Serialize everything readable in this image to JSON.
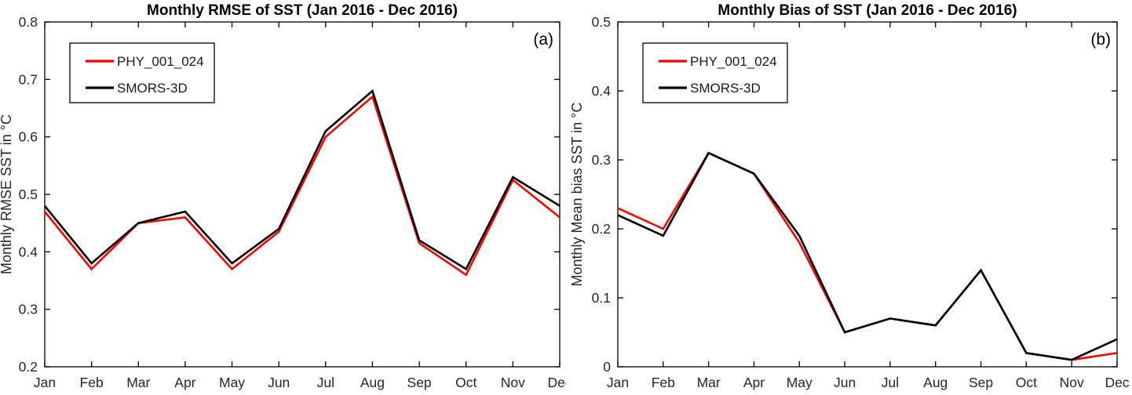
{
  "figure": {
    "background": "#ffffff",
    "text_color": "#262626",
    "title_color": "#000000"
  },
  "chart_data": [
    {
      "type": "line",
      "panel_label": "(a)",
      "title": "Monthly RMSE of SST (Jan 2016 - Dec 2016)",
      "ylabel": "Monthly RMSE SST in °C",
      "xlabel": "",
      "categories": [
        "Jan",
        "Feb",
        "Mar",
        "Apr",
        "May",
        "Jun",
        "Jul",
        "Aug",
        "Sep",
        "Oct",
        "Nov",
        "Dec"
      ],
      "ylim": [
        0.2,
        0.8
      ],
      "yticks": [
        0.2,
        0.3,
        0.4,
        0.5,
        0.6,
        0.7,
        0.8
      ],
      "ytick_labels": [
        "0.2",
        "0.3",
        "0.4",
        "0.5",
        "0.6",
        "0.7",
        "0.8"
      ],
      "grid": false,
      "legend_position": "top-left",
      "series": [
        {
          "name": "PHY_001_024",
          "color": "#ff0000",
          "values": [
            0.47,
            0.37,
            0.45,
            0.46,
            0.37,
            0.435,
            0.6,
            0.67,
            0.415,
            0.36,
            0.525,
            0.46
          ]
        },
        {
          "name": "SMORS-3D",
          "color": "#000000",
          "values": [
            0.48,
            0.38,
            0.45,
            0.47,
            0.38,
            0.44,
            0.61,
            0.68,
            0.42,
            0.37,
            0.53,
            0.48
          ]
        }
      ]
    },
    {
      "type": "line",
      "panel_label": "(b)",
      "title": "Monthly Bias of SST (Jan 2016 - Dec 2016)",
      "ylabel": "Monthly Mean bias SST in °C",
      "xlabel": "",
      "categories": [
        "Jan",
        "Feb",
        "Mar",
        "Apr",
        "May",
        "Jun",
        "Jul",
        "Aug",
        "Sep",
        "Oct",
        "Nov",
        "Dec"
      ],
      "ylim": [
        0,
        0.5
      ],
      "yticks": [
        0,
        0.1,
        0.2,
        0.3,
        0.4,
        0.5
      ],
      "ytick_labels": [
        "0",
        "0.1",
        "0.2",
        "0.3",
        "0.4",
        "0.5"
      ],
      "grid": false,
      "legend_position": "top-left",
      "series": [
        {
          "name": "PHY_001_024",
          "color": "#ff0000",
          "values": [
            0.23,
            0.2,
            0.31,
            0.28,
            0.18,
            0.05,
            0.07,
            0.06,
            0.14,
            0.02,
            0.01,
            0.02
          ]
        },
        {
          "name": "SMORS-3D",
          "color": "#000000",
          "values": [
            0.22,
            0.19,
            0.31,
            0.28,
            0.19,
            0.05,
            0.07,
            0.06,
            0.14,
            0.02,
            0.01,
            0.04
          ]
        }
      ]
    }
  ]
}
